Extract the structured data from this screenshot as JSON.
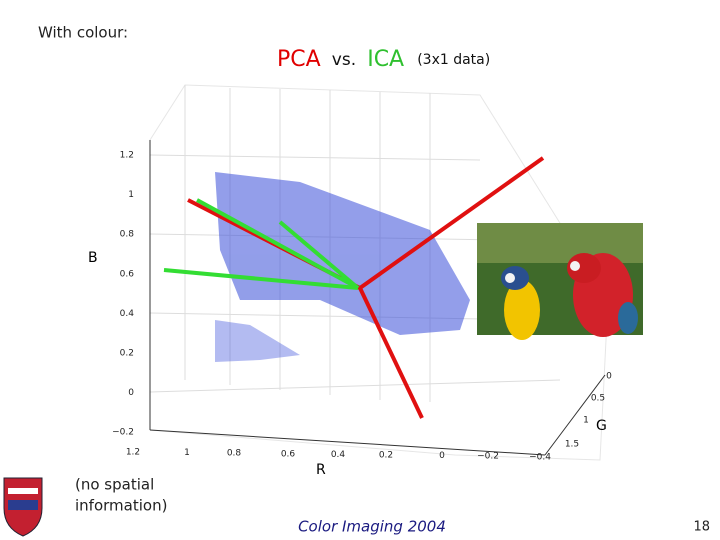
{
  "header": {
    "note": "With colour:",
    "title": {
      "pca": "PCA",
      "vs": "vs.",
      "ica": "ICA",
      "detail": "(3x1 data)"
    }
  },
  "plot": {
    "b_axis": {
      "label": "B",
      "ticks": [
        "1.2",
        "1",
        "0.8",
        "0.6",
        "0.4",
        "0.2",
        "0",
        "−0.2"
      ]
    },
    "r_axis": {
      "label": "R",
      "ticks": [
        "1.2",
        "1",
        "0.8",
        "0.6",
        "0.4",
        "0.2",
        "0",
        "−0.2",
        "−0.4"
      ]
    },
    "g_axis": {
      "label": "G",
      "ticks": [
        "0",
        "0.5",
        "1",
        "1.5"
      ]
    }
  },
  "caption": {
    "lines": [
      "(no spatial",
      "information)"
    ]
  },
  "footer": {
    "text": "Color Imaging 2004",
    "page": "18"
  }
}
